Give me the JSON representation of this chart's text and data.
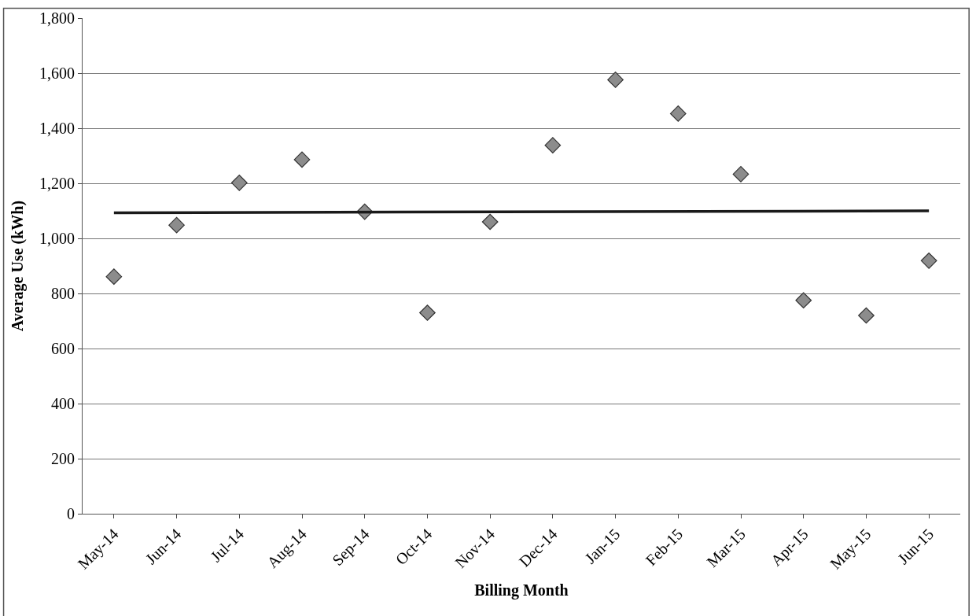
{
  "chart_data": {
    "type": "scatter",
    "xlabel": "Billing Month",
    "ylabel": "Average Use (kWh)",
    "categories": [
      "May-14",
      "Jun-14",
      "Jul-14",
      "Aug-14",
      "Sep-14",
      "Oct-14",
      "Nov-14",
      "Dec-14",
      "Jan-15",
      "Feb-15",
      "Mar-15",
      "Apr-15",
      "May-15",
      "Jun-15"
    ],
    "series": [
      {
        "color": "#8c8c8c",
        "marker": "diamond",
        "values": [
          861,
          1048,
          1202,
          1286,
          1097,
          730,
          1060,
          1338,
          1576,
          1453,
          1233,
          775,
          720,
          919
        ]
      },
      {
        "type": "line",
        "color": "#1a1a1a",
        "marker": "none",
        "values": [
          1093,
          null,
          null,
          null,
          null,
          null,
          null,
          null,
          null,
          null,
          null,
          null,
          null,
          1100
        ]
      }
    ],
    "ylim": [
      0,
      1800
    ],
    "yticks": [
      {
        "value": 0,
        "label": "0"
      },
      {
        "value": 200,
        "label": "200"
      },
      {
        "value": 400,
        "label": "400"
      },
      {
        "value": 600,
        "label": "600"
      },
      {
        "value": 800,
        "label": "800"
      },
      {
        "value": 1000,
        "label": "1,000"
      },
      {
        "value": 1200,
        "label": "1,200"
      },
      {
        "value": 1400,
        "label": "1,400"
      },
      {
        "value": 1600,
        "label": "1,600"
      },
      {
        "value": 1800,
        "label": "1,800"
      }
    ],
    "grid": "y"
  }
}
